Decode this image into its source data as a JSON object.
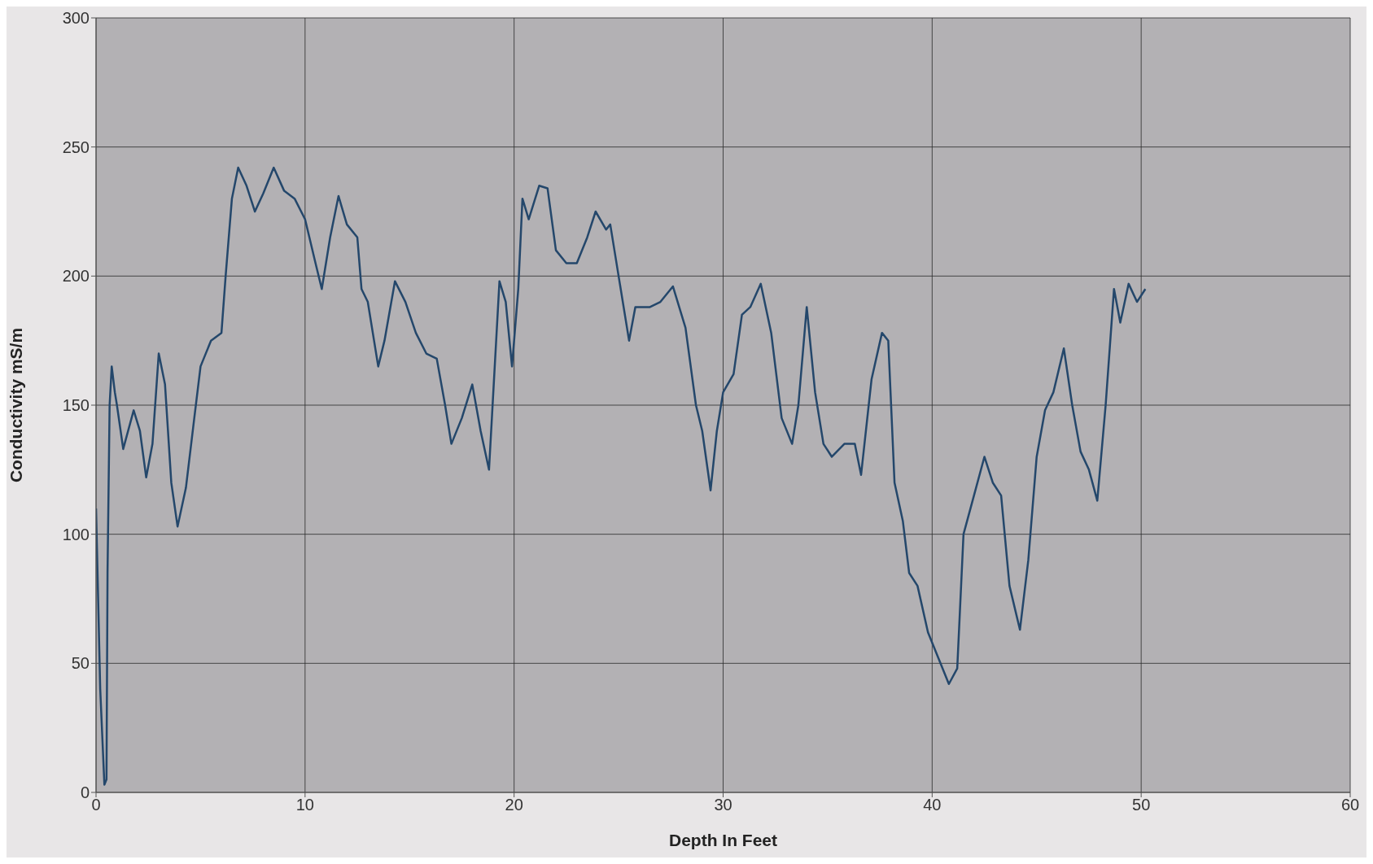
{
  "chart_data": {
    "type": "line",
    "xlabel": "Depth In Feet",
    "ylabel": "Conductivity mS/m",
    "xlim": [
      0,
      60
    ],
    "xticks": [
      0,
      10,
      20,
      30,
      40,
      50,
      60
    ],
    "ylim": [
      0,
      300
    ],
    "yticks": [
      0,
      50,
      100,
      150,
      200,
      250,
      300
    ],
    "grid": true,
    "marker": "none",
    "line_style": "solid",
    "series": [
      {
        "color": "#24476b",
        "x": [
          0,
          0.2,
          0.4,
          0.5,
          0.55,
          0.65,
          0.75,
          0.9,
          1.0,
          1.3,
          1.8,
          2.1,
          2.4,
          2.7,
          3.0,
          3.3,
          3.6,
          3.9,
          4.3,
          4.7,
          5.0,
          5.5,
          6.0,
          6.2,
          6.5,
          6.8,
          7.2,
          7.6,
          8.0,
          8.5,
          9.0,
          9.5,
          10.0,
          10.5,
          10.8,
          11.2,
          11.6,
          12.0,
          12.5,
          12.7,
          13.0,
          13.5,
          13.8,
          14.3,
          14.8,
          15.3,
          15.8,
          16.3,
          16.7,
          17.0,
          17.5,
          18.0,
          18.4,
          18.8,
          19.3,
          19.6,
          19.9,
          20.2,
          20.4,
          20.7,
          21.2,
          21.6,
          22.0,
          22.5,
          23.0,
          23.5,
          23.9,
          24.4,
          24.6,
          25.0,
          25.5,
          25.8,
          26.5,
          27.0,
          27.6,
          28.2,
          28.7,
          29.0,
          29.4,
          29.7,
          30.0,
          30.5,
          30.9,
          31.3,
          31.8,
          32.3,
          32.8,
          33.3,
          33.6,
          34.0,
          34.4,
          34.8,
          35.2,
          35.8,
          36.3,
          36.6,
          37.1,
          37.6,
          37.9,
          38.2,
          38.6,
          38.9,
          39.3,
          39.8,
          40.3,
          40.8,
          41.2,
          41.5,
          42.0,
          42.5,
          42.9,
          43.3,
          43.7,
          44.2,
          44.6,
          45.0,
          45.4,
          45.8,
          46.3,
          46.7,
          47.1,
          47.5,
          47.9,
          48.3,
          48.7,
          49.0,
          49.4,
          49.8,
          50.2
        ],
        "values": [
          110,
          40,
          3,
          5,
          85,
          150,
          165,
          155,
          150,
          133,
          148,
          140,
          122,
          135,
          170,
          158,
          120,
          103,
          118,
          145,
          165,
          175,
          178,
          200,
          230,
          242,
          235,
          225,
          232,
          242,
          233,
          230,
          222,
          205,
          195,
          215,
          231,
          220,
          215,
          195,
          190,
          165,
          175,
          198,
          190,
          178,
          170,
          168,
          150,
          135,
          145,
          158,
          140,
          125,
          198,
          190,
          165,
          195,
          230,
          222,
          235,
          234,
          210,
          205,
          205,
          215,
          225,
          218,
          220,
          200,
          175,
          188,
          188,
          190,
          196,
          180,
          150,
          140,
          117,
          140,
          155,
          162,
          185,
          188,
          197,
          178,
          145,
          135,
          150,
          188,
          155,
          135,
          130,
          135,
          135,
          123,
          160,
          178,
          175,
          120,
          105,
          85,
          80,
          62,
          52,
          42,
          48,
          100,
          115,
          130,
          120,
          115,
          80,
          63,
          90,
          130,
          148,
          155,
          172,
          150,
          132,
          125,
          113,
          150,
          195,
          182,
          197,
          190,
          195
        ]
      }
    ]
  }
}
